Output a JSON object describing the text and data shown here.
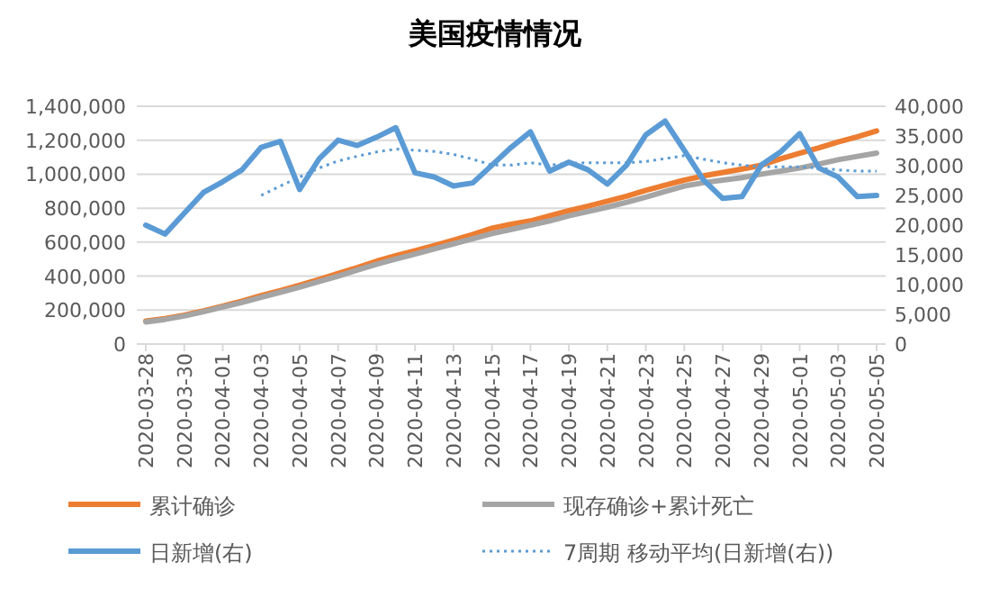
{
  "chart_data": {
    "type": "line",
    "title": "美国疫情情况",
    "categories": [
      "2020-03-28",
      null,
      "2020-03-30",
      null,
      "2020-04-01",
      null,
      "2020-04-03",
      null,
      "2020-04-05",
      null,
      "2020-04-07",
      null,
      "2020-04-09",
      null,
      "2020-04-11",
      null,
      "2020-04-13",
      null,
      "2020-04-15",
      null,
      "2020-04-17",
      null,
      "2020-04-19",
      null,
      "2020-04-21",
      null,
      "2020-04-23",
      null,
      "2020-04-25",
      null,
      "2020-04-27",
      null,
      "2020-04-29",
      null,
      "2020-05-01",
      null,
      "2020-05-03",
      null,
      "2020-05-05"
    ],
    "series": [
      {
        "name": "累计确诊",
        "color": "#ed7d31",
        "values": [
          135000,
          150000,
          170000,
          195000,
          223000,
          253000,
          285000,
          315000,
          347000,
          380000,
          415000,
          450000,
          488000,
          520000,
          550000,
          580000,
          612000,
          645000,
          682000,
          705000,
          725000,
          755000,
          785000,
          812000,
          841000,
          870000,
          905000,
          935000,
          965000,
          990000,
          1010000,
          1030000,
          1053000,
          1090000,
          1124000,
          1155000,
          1190000,
          1220000,
          1255000
        ]
      },
      {
        "name": "现存确诊+累计死亡",
        "color": "#a5a5a5",
        "values": [
          130000,
          145000,
          165000,
          190000,
          218000,
          245000,
          275000,
          305000,
          335000,
          368000,
          400000,
          435000,
          470000,
          500000,
          530000,
          560000,
          590000,
          620000,
          650000,
          675000,
          700000,
          725000,
          755000,
          780000,
          806000,
          835000,
          865000,
          898000,
          930000,
          950000,
          965000,
          980000,
          1000000,
          1018000,
          1036000,
          1060000,
          1085000,
          1105000,
          1124000
        ]
      },
      {
        "name": "日新增(右)",
        "color": "#5b9bd5",
        "axis": "y2",
        "values": [
          20000,
          18500,
          22000,
          25500,
          27300,
          29300,
          33100,
          34100,
          26000,
          31100,
          34300,
          33400,
          34800,
          36400,
          28800,
          28100,
          26600,
          27100,
          30100,
          33100,
          35700,
          29100,
          30600,
          29300,
          26900,
          30100,
          35200,
          37500,
          32600,
          27600,
          24500,
          24800,
          30100,
          32300,
          35400,
          29600,
          28100,
          24800,
          25000
        ]
      },
      {
        "name": "7周期 移动平均(日新增(右))",
        "color": "#5b9bd5",
        "axis": "y2",
        "line_style": "dotted",
        "values": [
          null,
          null,
          null,
          null,
          null,
          null,
          25000,
          26600,
          28100,
          29600,
          30800,
          31600,
          32300,
          32800,
          32600,
          32400,
          31900,
          31100,
          30100,
          30100,
          30500,
          30100,
          30400,
          30500,
          30500,
          30500,
          30700,
          31200,
          31700,
          31100,
          30500,
          30100,
          29800,
          29800,
          29800,
          29600,
          29300,
          29100,
          29100
        ]
      }
    ],
    "ylim": [
      0,
      1400000
    ],
    "yticks": [
      0,
      {
        "value": 200000,
        "label": "200,000"
      },
      {
        "value": 400000,
        "label": "400,000"
      },
      {
        "value": 600000,
        "label": "600,000"
      },
      {
        "value": 800000,
        "label": "800,000"
      },
      {
        "value": 1000000,
        "label": "1,000,000"
      },
      {
        "value": 1200000,
        "label": "1,200,000"
      },
      {
        "value": 1400000,
        "label": "1,400,000"
      }
    ],
    "y2lim": [
      0,
      40000
    ],
    "y2ticks": [
      0,
      {
        "value": 5000,
        "label": "5,000"
      },
      {
        "value": 10000,
        "label": "10,000"
      },
      {
        "value": 15000,
        "label": "15,000"
      },
      {
        "value": 20000,
        "label": "20,000"
      },
      {
        "value": 25000,
        "label": "25,000"
      },
      {
        "value": 30000,
        "label": "30,000"
      },
      {
        "value": 35000,
        "label": "35,000"
      },
      {
        "value": 40000,
        "label": "40,000"
      }
    ],
    "grid": "y",
    "legend": "bottom",
    "marker": "none"
  }
}
